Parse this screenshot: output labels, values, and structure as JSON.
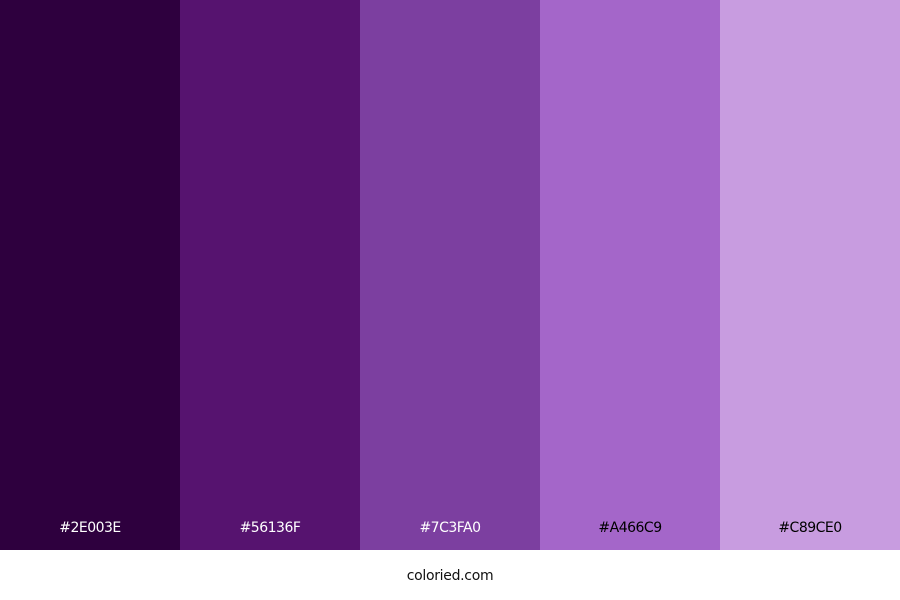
{
  "palette": [
    {
      "hex": "#2E003E",
      "label": "#2E003E",
      "text_color": "#ffffff"
    },
    {
      "hex": "#56136F",
      "label": "#56136F",
      "text_color": "#ffffff"
    },
    {
      "hex": "#7C3FA0",
      "label": "#7C3FA0",
      "text_color": "#ffffff"
    },
    {
      "hex": "#A466C9",
      "label": "#A466C9",
      "text_color": "#000000"
    },
    {
      "hex": "#C89CE0",
      "label": "#C89CE0",
      "text_color": "#000000"
    }
  ],
  "footer": {
    "site": "coloried.com"
  }
}
